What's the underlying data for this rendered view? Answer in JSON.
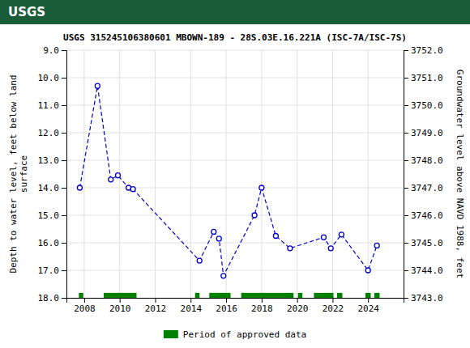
{
  "chart_data": {
    "type": "line",
    "title": "USGS 315245106380601 MBOWN-189 - 28S.03E.16.221A (ISC-7A/ISC-7S)",
    "annotations": [
      "USGS"
    ],
    "ylabel": "Depth to water level, feet below land\n surface",
    "y2label": "Groundwater level above NAVD 1988, feet",
    "x": [
      2007.75,
      2008.75,
      2009.5,
      2009.9,
      2010.5,
      2010.75,
      2014.5,
      2015.3,
      2015.6,
      2015.85,
      2017.6,
      2018.0,
      2018.8,
      2019.6,
      2021.5,
      2021.9,
      2022.5,
      2024.0,
      2024.5
    ],
    "series": [
      {
        "type": "line",
        "color": "#0000CC",
        "marker": "circle",
        "line_style": "dashed",
        "values": [
          14.0,
          10.3,
          13.7,
          13.55,
          14.0,
          14.05,
          16.65,
          15.6,
          15.85,
          17.2,
          15.0,
          14.0,
          15.75,
          16.2,
          15.8,
          16.2,
          15.7,
          17.0,
          16.1
        ]
      },
      {
        "type": "span",
        "name": "Period of approved data",
        "color": "#008000",
        "values": [
          [
            2007.7,
            2007.95
          ],
          [
            2009.1,
            2010.95
          ],
          [
            2014.25,
            2014.5
          ],
          [
            2015.05,
            2016.25
          ],
          [
            2016.85,
            2019.8
          ],
          [
            2020.05,
            2020.3
          ],
          [
            2020.95,
            2022.05
          ],
          [
            2022.25,
            2022.55
          ],
          [
            2023.85,
            2024.15
          ],
          [
            2024.35,
            2024.65
          ]
        ],
        "y_range": [
          17.82,
          18.0
        ]
      }
    ],
    "xlim": [
      2007.0,
      2026.0
    ],
    "xticks": [
      2008,
      2010,
      2012,
      2014,
      2016,
      2018,
      2020,
      2022,
      2024
    ],
    "ylim": [
      18.0,
      9.0
    ],
    "yticks": [
      {
        "value": 9.0,
        "label": "9.0"
      },
      {
        "value": 10.0,
        "label": "10.0"
      },
      {
        "value": 11.0,
        "label": "11.0"
      },
      {
        "value": 12.0,
        "label": "12.0"
      },
      {
        "value": 13.0,
        "label": "13.0"
      },
      {
        "value": 14.0,
        "label": "14.0"
      },
      {
        "value": 15.0,
        "label": "15.0"
      },
      {
        "value": 16.0,
        "label": "16.0"
      },
      {
        "value": 17.0,
        "label": "17.0"
      },
      {
        "value": 18.0,
        "label": "18.0"
      }
    ],
    "y2lim": [
      3743.0,
      3752.0
    ],
    "y2ticks": [
      {
        "value": 3743.0,
        "label": "3743.0"
      },
      {
        "value": 3744.0,
        "label": "3744.0"
      },
      {
        "value": 3745.0,
        "label": "3745.0"
      },
      {
        "value": 3746.0,
        "label": "3746.0"
      },
      {
        "value": 3747.0,
        "label": "3747.0"
      },
      {
        "value": 3748.0,
        "label": "3748.0"
      },
      {
        "value": 3749.0,
        "label": "3749.0"
      },
      {
        "value": 3750.0,
        "label": "3750.0"
      },
      {
        "value": 3751.0,
        "label": "3751.0"
      },
      {
        "value": 3752.0,
        "label": "3752.0"
      }
    ],
    "grid": true,
    "legend": "bottom"
  }
}
